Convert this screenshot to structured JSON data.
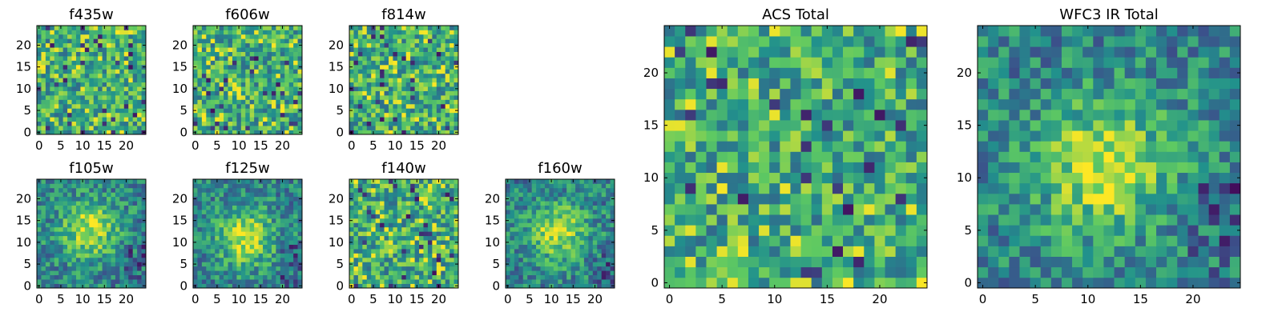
{
  "figure": {
    "colormap": [
      "#440154",
      "#3b528b",
      "#21918c",
      "#5ec962",
      "#fde725"
    ]
  },
  "chart_data": [
    {
      "type": "heatmap",
      "title": "f435w",
      "grid": [
        25,
        25
      ],
      "xlim": [
        0,
        25
      ],
      "ylim": [
        0,
        25
      ],
      "xticks": [
        0,
        5,
        10,
        15,
        20
      ],
      "yticks": [
        0,
        5,
        10,
        15,
        20
      ],
      "xtick_labels": [
        "0",
        "5",
        "10",
        "15",
        "20"
      ],
      "ytick_labels": [
        "0",
        "5",
        "10",
        "15",
        "20"
      ],
      "structure": "noise",
      "seed": 11
    },
    {
      "type": "heatmap",
      "title": "f606w",
      "grid": [
        25,
        25
      ],
      "xlim": [
        0,
        25
      ],
      "ylim": [
        0,
        25
      ],
      "xticks": [
        0,
        5,
        10,
        15,
        20
      ],
      "yticks": [
        0,
        5,
        10,
        15,
        20
      ],
      "xtick_labels": [
        "0",
        "5",
        "10",
        "15",
        "20"
      ],
      "ytick_labels": [
        "0",
        "5",
        "10",
        "15",
        "20"
      ],
      "structure": "noise",
      "seed": 23
    },
    {
      "type": "heatmap",
      "title": "f814w",
      "grid": [
        25,
        25
      ],
      "xlim": [
        0,
        25
      ],
      "ylim": [
        0,
        25
      ],
      "xticks": [
        0,
        5,
        10,
        15,
        20
      ],
      "yticks": [
        0,
        5,
        10,
        15,
        20
      ],
      "xtick_labels": [
        "0",
        "5",
        "10",
        "15",
        "20"
      ],
      "ytick_labels": [
        "0",
        "5",
        "10",
        "15",
        "20"
      ],
      "structure": "noise",
      "seed": 37
    },
    {
      "type": "heatmap",
      "title": "f105w",
      "grid": [
        25,
        25
      ],
      "xlim": [
        0,
        25
      ],
      "ylim": [
        0,
        25
      ],
      "xticks": [
        0,
        5,
        10,
        15,
        20
      ],
      "yticks": [
        0,
        5,
        10,
        15,
        20
      ],
      "xtick_labels": [
        "0",
        "5",
        "10",
        "15",
        "20"
      ],
      "ytick_labels": [
        "0",
        "5",
        "10",
        "15",
        "20"
      ],
      "structure": "source",
      "seed": 41
    },
    {
      "type": "heatmap",
      "title": "f125w",
      "grid": [
        25,
        25
      ],
      "xlim": [
        0,
        25
      ],
      "ylim": [
        0,
        25
      ],
      "xticks": [
        0,
        5,
        10,
        15,
        20
      ],
      "yticks": [
        0,
        5,
        10,
        15,
        20
      ],
      "xtick_labels": [
        "0",
        "5",
        "10",
        "15",
        "20"
      ],
      "ytick_labels": [
        "0",
        "5",
        "10",
        "15",
        "20"
      ],
      "structure": "source",
      "seed": 53
    },
    {
      "type": "heatmap",
      "title": "f140w",
      "grid": [
        25,
        25
      ],
      "xlim": [
        0,
        25
      ],
      "ylim": [
        0,
        25
      ],
      "xticks": [
        0,
        5,
        10,
        15,
        20
      ],
      "yticks": [
        0,
        5,
        10,
        15,
        20
      ],
      "xtick_labels": [
        "0",
        "5",
        "10",
        "15",
        "20"
      ],
      "ytick_labels": [
        "0",
        "5",
        "10",
        "15",
        "20"
      ],
      "structure": "noise",
      "seed": 67
    },
    {
      "type": "heatmap",
      "title": "f160w",
      "grid": [
        25,
        25
      ],
      "xlim": [
        0,
        25
      ],
      "ylim": [
        0,
        25
      ],
      "xticks": [
        0,
        5,
        10,
        15,
        20
      ],
      "yticks": [
        0,
        5,
        10,
        15,
        20
      ],
      "xtick_labels": [
        "0",
        "5",
        "10",
        "15",
        "20"
      ],
      "ytick_labels": [
        "0",
        "5",
        "10",
        "15",
        "20"
      ],
      "structure": "source",
      "seed": 71
    },
    {
      "type": "heatmap",
      "title": "ACS Total",
      "grid": [
        25,
        25
      ],
      "xlim": [
        0,
        25
      ],
      "ylim": [
        0,
        25
      ],
      "xticks": [
        0,
        5,
        10,
        15,
        20
      ],
      "yticks": [
        0,
        5,
        10,
        15,
        20
      ],
      "xtick_labels": [
        "0",
        "5",
        "10",
        "15",
        "20"
      ],
      "ytick_labels": [
        "0",
        "5",
        "10",
        "15",
        "20"
      ],
      "structure": "noise",
      "seed": 83
    },
    {
      "type": "heatmap",
      "title": "WFC3 IR Total",
      "grid": [
        25,
        25
      ],
      "xlim": [
        0,
        25
      ],
      "ylim": [
        0,
        25
      ],
      "xticks": [
        0,
        5,
        10,
        15,
        20
      ],
      "yticks": [
        0,
        5,
        10,
        15,
        20
      ],
      "xtick_labels": [
        "0",
        "5",
        "10",
        "15",
        "20"
      ],
      "ytick_labels": [
        "0",
        "5",
        "10",
        "15",
        "20"
      ],
      "structure": "source",
      "seed": 97
    }
  ]
}
